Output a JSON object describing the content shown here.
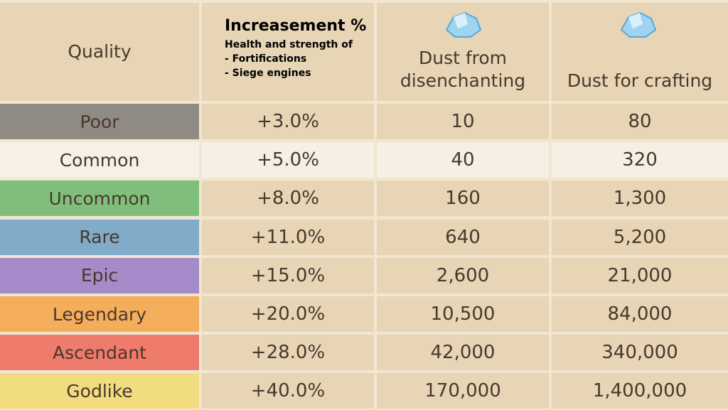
{
  "table": {
    "header": {
      "quality": "Quality",
      "increase_title": "Increasement %",
      "increase_lines": [
        "Health and strength of",
        "- Fortifications",
        "- Siege engines"
      ],
      "dust_from": "Dust from disenchanting",
      "dust_for": "Dust for crafting"
    },
    "rows": [
      [
        "Poor",
        "+3.0%",
        "10",
        "80"
      ],
      [
        "Common",
        "+5.0%",
        "40",
        "320"
      ],
      [
        "Uncommon",
        "+8.0%",
        "160",
        "1,300"
      ],
      [
        "Rare",
        "+11.0%",
        "640",
        "5,200"
      ],
      [
        "Epic",
        "+15.0%",
        "2,600",
        "21,000"
      ],
      [
        "Legendary",
        "+20.0%",
        "10,500",
        "84,000"
      ],
      [
        "Ascendant",
        "+28.0%",
        "42,000",
        "340,000"
      ],
      [
        "Godlike",
        "+40.0%",
        "170,000",
        "1,400,000"
      ]
    ]
  }
}
